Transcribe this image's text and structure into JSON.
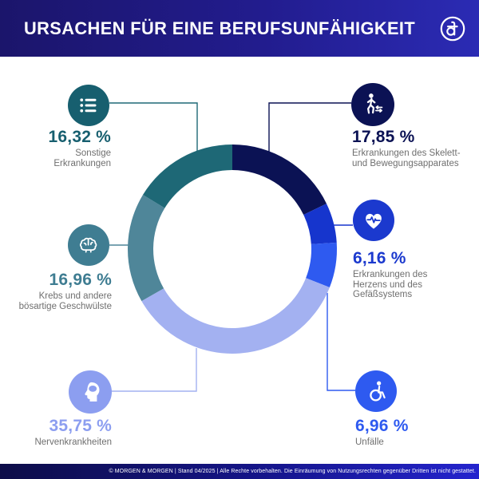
{
  "header": {
    "title": "URSACHEN FÜR EINE BERUFSUNFÄHIGKEIT",
    "logo_name": "morgen-und-morgen-ampersand-logo"
  },
  "footer": {
    "copyright": "© MORGEN & MORGEN | Stand 04/2025 | Alle Rechte vorbehalten. Die Einräumung von Nutzungsrechten gegenüber Dritten ist nicht gestattet."
  },
  "causes": [
    {
      "id": "skelett",
      "pct_display": "17,85 %",
      "accent": "#0B1254",
      "label_lines": [
        "Erkrankungen des Skelett-",
        "und Bewegungsapparates"
      ],
      "icon": "walking-person-icon"
    },
    {
      "id": "herz",
      "pct_display": "6,16 %",
      "accent": "#1B39CE",
      "label_lines": [
        "Erkrankungen des",
        "Herzens und des",
        "Gefäßsystems"
      ],
      "icon": "heart-ecg-icon"
    },
    {
      "id": "unfaelle",
      "pct_display": "6,96 %",
      "accent": "#2E5AF0",
      "label_lines": [
        "Unfälle"
      ],
      "icon": "wheelchair-icon"
    },
    {
      "id": "nerven",
      "pct_display": "35,75 %",
      "accent": "#8C9EF0",
      "label_lines": [
        "Nervenkrankheiten"
      ],
      "icon": "head-profile-icon"
    },
    {
      "id": "krebs",
      "pct_display": "16,96 %",
      "accent": "#3F7D92",
      "label_lines": [
        "Krebs und andere",
        "bösartige Geschwülste"
      ],
      "icon": "brain-icon"
    },
    {
      "id": "sonstige",
      "pct_display": "16,32 %",
      "accent": "#175F6F",
      "label_lines": [
        "Sonstige",
        "Erkrankungen"
      ],
      "icon": "list-icon"
    }
  ],
  "chart_data": {
    "type": "pie",
    "variant": "donut",
    "title": "Ursachen für eine Berufsunfähigkeit",
    "unit": "%",
    "start_angle_deg": 0,
    "direction": "clockwise",
    "inner_radius_ratio": 0.76,
    "segments": [
      {
        "label": "Erkrankungen des Skelett- und Bewegungsapparates",
        "value": 17.85,
        "color": "#0B1254"
      },
      {
        "label": "Erkrankungen des Herzens und des Gefäßsystems",
        "value": 6.16,
        "color": "#1635CD"
      },
      {
        "label": "Unfälle",
        "value": 6.96,
        "color": "#2E5AF0"
      },
      {
        "label": "Nervenkrankheiten",
        "value": 35.75,
        "color": "#A3B1F1"
      },
      {
        "label": "Krebs und andere bösartige Geschwülste",
        "value": 16.96,
        "color": "#4F8699"
      },
      {
        "label": "Sonstige Erkrankungen",
        "value": 16.32,
        "color": "#1E6876"
      }
    ]
  }
}
